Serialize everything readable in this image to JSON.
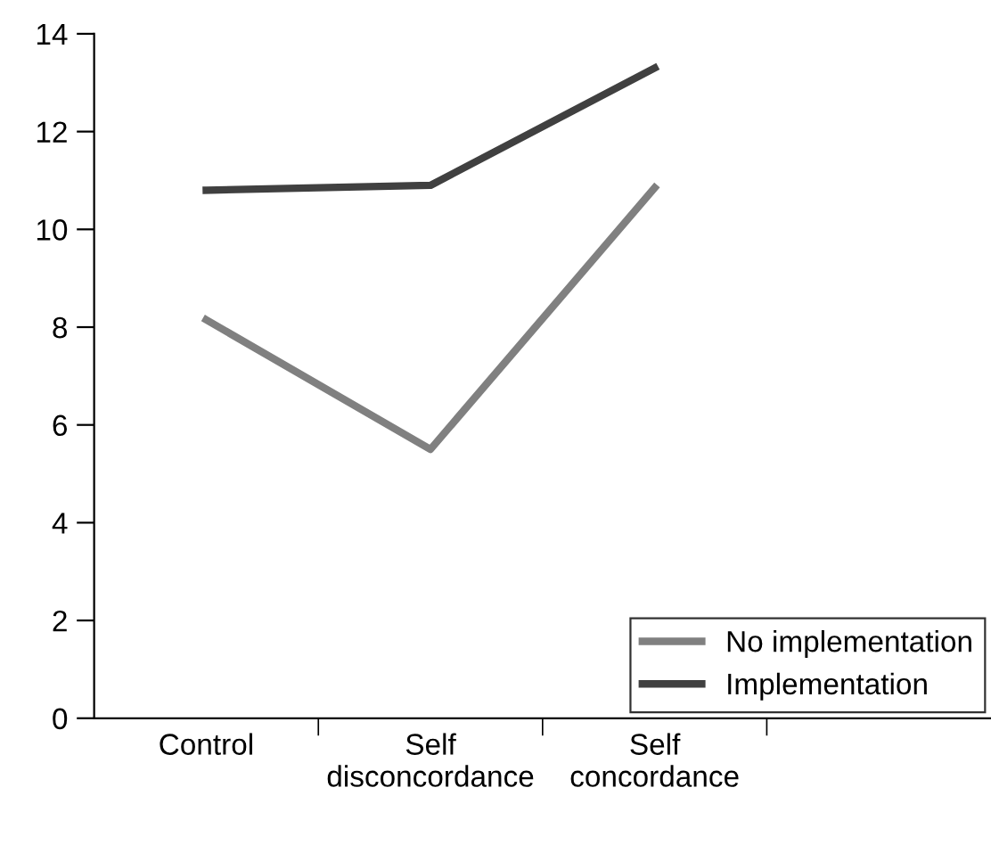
{
  "chart_data": {
    "type": "line",
    "categories": [
      "Control",
      "Self\ndisconcordance",
      "Self\nconcordance",
      null
    ],
    "series": [
      {
        "name": "No implementation",
        "color": "#808080",
        "values": [
          8.15,
          5.5,
          10.85,
          null
        ]
      },
      {
        "name": "Implementation",
        "color": "#404040",
        "values": [
          10.8,
          10.9,
          13.3,
          null
        ]
      }
    ],
    "ylim": [
      0,
      14
    ],
    "yticks": [
      0,
      2,
      4,
      6,
      8,
      10,
      12,
      14
    ],
    "grid": false,
    "legend": "bottom right",
    "marker": "none",
    "line_style": "solid"
  }
}
